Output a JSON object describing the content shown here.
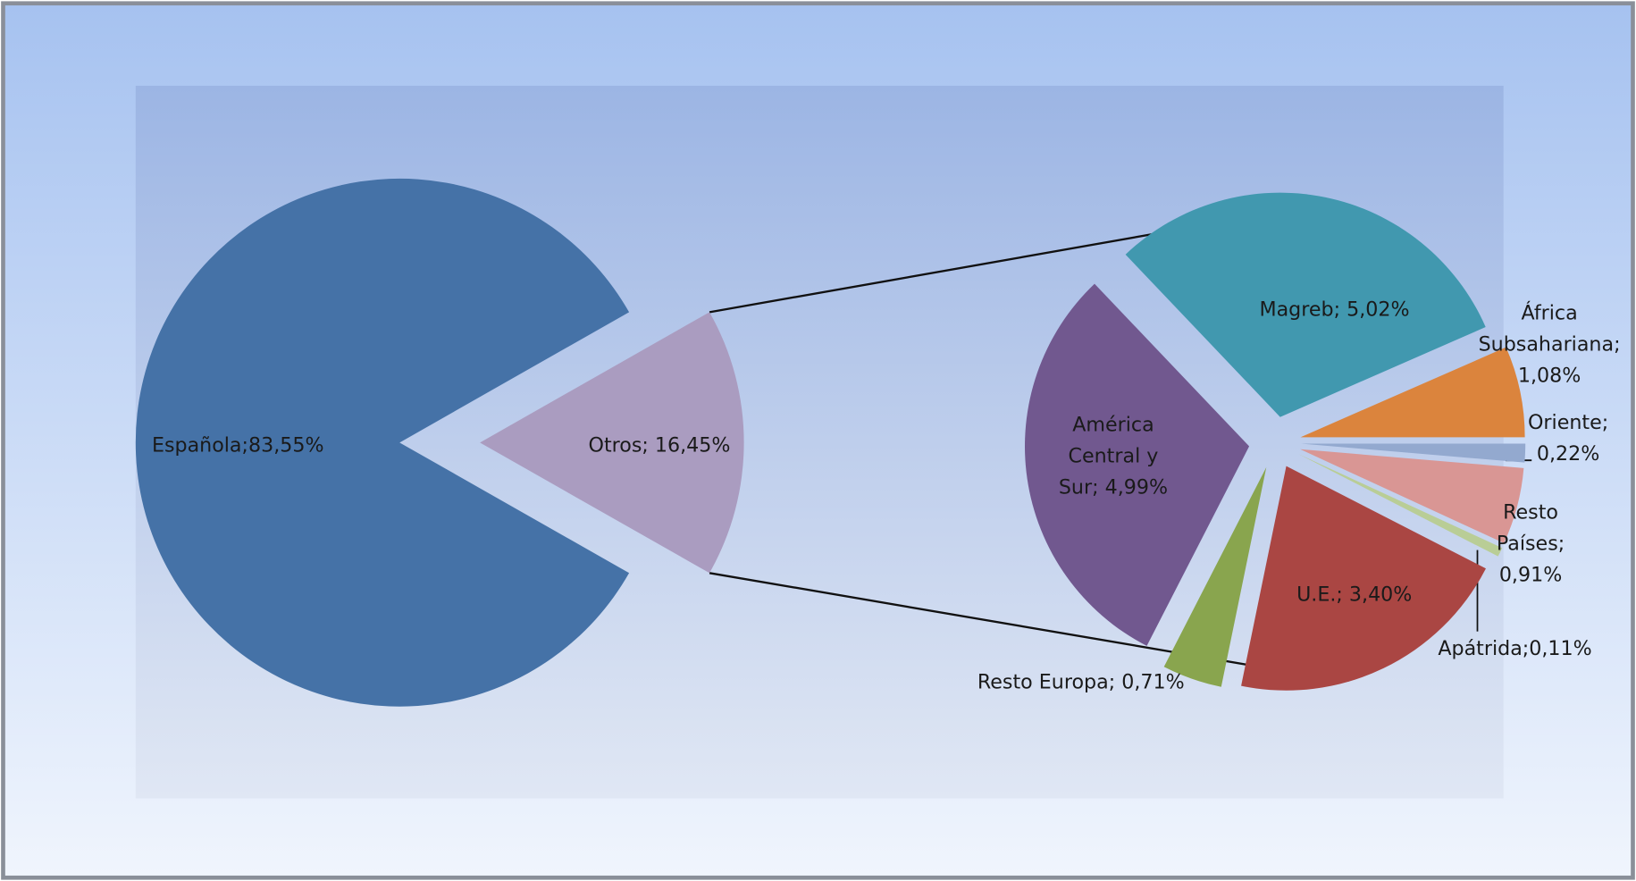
{
  "chart_data": [
    {
      "type": "pie",
      "values": [
        83.55,
        16.45
      ],
      "value_labels": [
        "Española;83,55%",
        "Otros; 16,45%"
      ],
      "colors": [
        "#4572a7",
        "#aa9cc0"
      ]
    },
    {
      "type": "pie",
      "values": [
        5.02,
        1.08,
        0.22,
        0.91,
        0.11,
        3.4,
        0.71,
        4.99
      ],
      "value_labels": [
        "Magreb; 5,02%",
        "África\nSubsahariana;\n1,08%",
        "Oriente;\n0,22%",
        "Resto\nPaíses;\n0,91%",
        "Apátrida;0,11%",
        "U.E.; 3,40%",
        "Resto Europa; 0,71%",
        "América\nCentral y\nSur; 4,99%"
      ],
      "colors": [
        "#4198af",
        "#db843d",
        "#93a9cf",
        "#d99694",
        "#b9cd96",
        "#aa4643",
        "#89a54e",
        "#71588f"
      ]
    }
  ]
}
